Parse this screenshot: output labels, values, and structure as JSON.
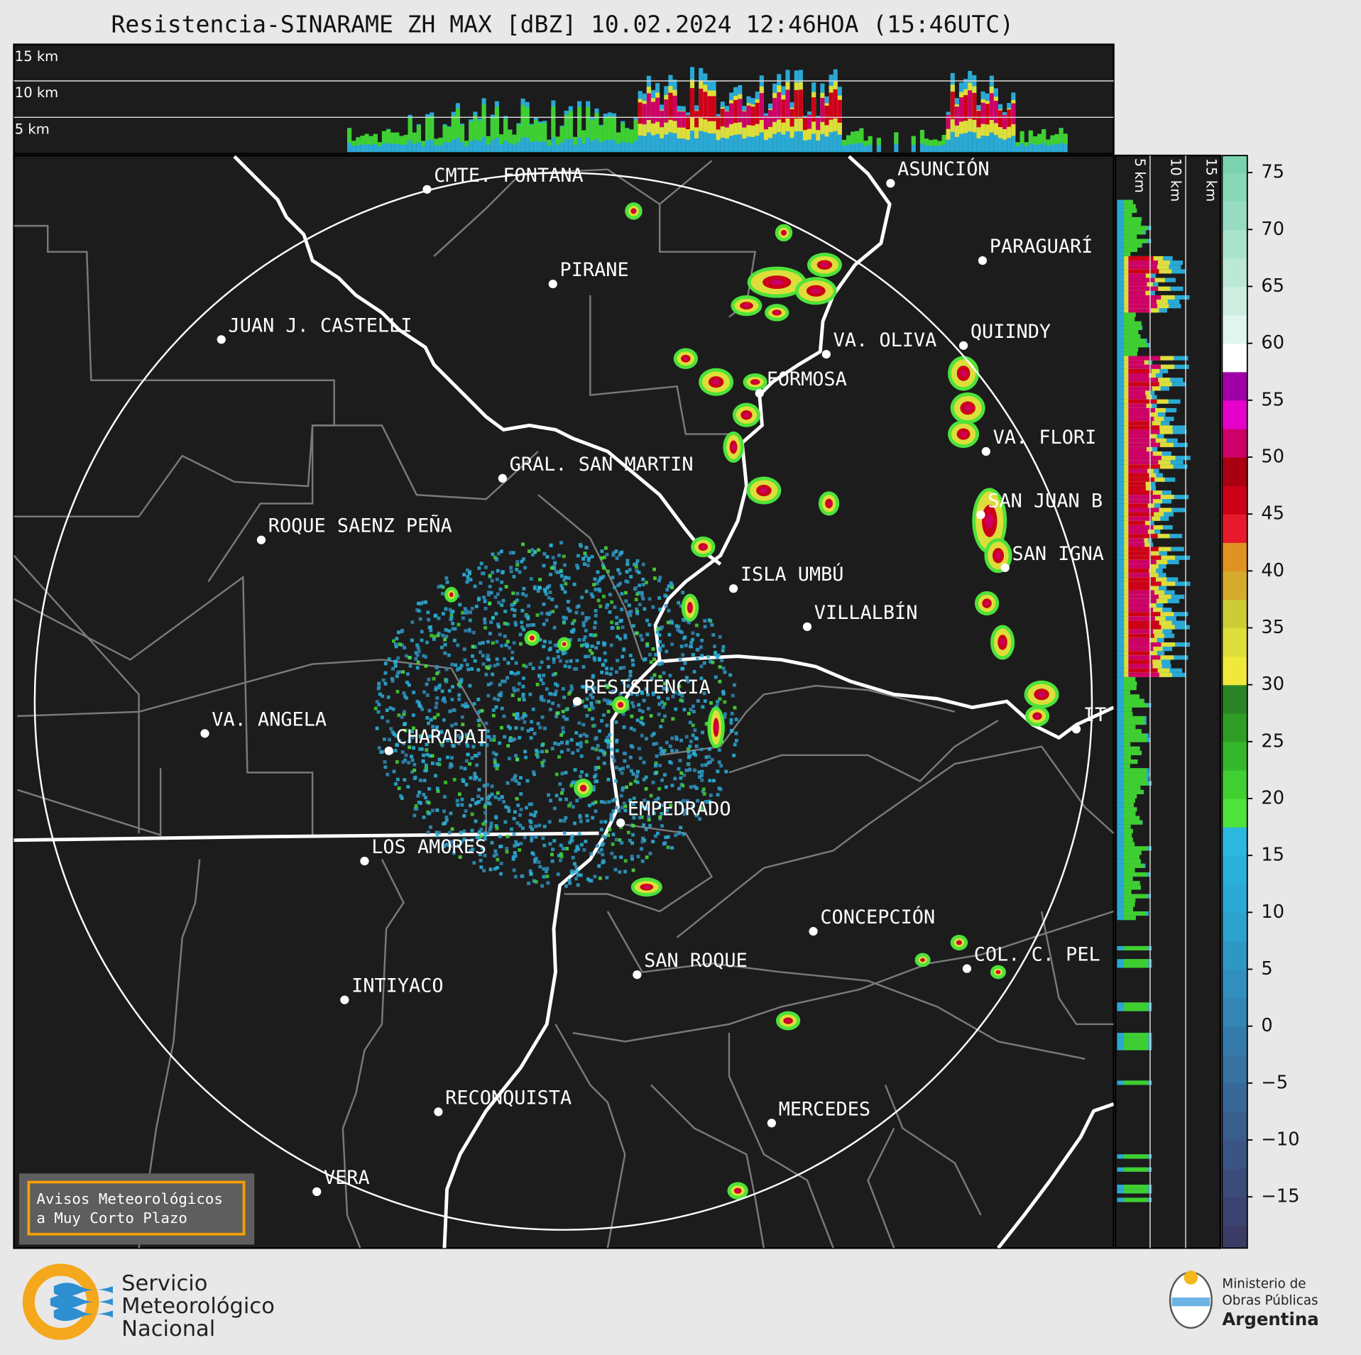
{
  "title": "Resistencia-SINARAME ZH MAX [dBZ] 10.02.2024 12:46HOA (15:46UTC)",
  "top_panel": {
    "height_labels": [
      "15 km",
      "10 km",
      "5 km"
    ]
  },
  "side_panel": {
    "height_labels": [
      "5 km",
      "10 km",
      "15 km"
    ]
  },
  "cities": [
    {
      "label": "CMTE. FONTANA"
    },
    {
      "label": "PIRANE"
    },
    {
      "label": "JUAN J. CASTELLI"
    },
    {
      "label": "ASUNCIÓN"
    },
    {
      "label": "PARAGUARÍ"
    },
    {
      "label": "VA. OLIVA"
    },
    {
      "label": "QUIINDY"
    },
    {
      "label": "FORMOSA"
    },
    {
      "label": "VA. FLORI"
    },
    {
      "label": "GRAL. SAN MARTIN"
    },
    {
      "label": "SAN JUAN B"
    },
    {
      "label": "ROQUE SAENZ PEÑA"
    },
    {
      "label": "SAN IGNA"
    },
    {
      "label": "ISLA UMBÚ"
    },
    {
      "label": "VILLALBÍN"
    },
    {
      "label": "RESISTENCIA"
    },
    {
      "label": "VA. ANGELA"
    },
    {
      "label": "CHARADAI"
    },
    {
      "label": "IT"
    },
    {
      "label": "EMPEDRADO"
    },
    {
      "label": "LOS AMORES"
    },
    {
      "label": "CONCEPCIÓN"
    },
    {
      "label": "COL. C. PEL"
    },
    {
      "label": "SAN ROQUE"
    },
    {
      "label": "INTIYACO"
    },
    {
      "label": "RECONQUISTA"
    },
    {
      "label": "MERCEDES"
    },
    {
      "label": "VERA"
    }
  ],
  "colorbar": {
    "lim": [
      -19.5,
      76.5
    ],
    "ticks": [
      75,
      70,
      65,
      60,
      55,
      50,
      45,
      40,
      35,
      30,
      25,
      20,
      15,
      10,
      5,
      0,
      {
        "value": -5,
        "label": "−5"
      },
      {
        "value": -10,
        "label": "−10"
      },
      {
        "value": -15,
        "label": "−15"
      }
    ],
    "band_start": -20,
    "band_step": 2.5,
    "colors": [
      "#3b3c66",
      "#3b4470",
      "#3b4c7a",
      "#3a5584",
      "#395e8e",
      "#386898",
      "#3672a2",
      "#347bab",
      "#3285b4",
      "#308fbd",
      "#2e98c5",
      "#2ca1cd",
      "#2aa9d4",
      "#29b1da",
      "#2ab8df",
      "#4ee33a",
      "#3fcf30",
      "#34b82a",
      "#2f9e27",
      "#2b8526",
      "#f0e83a",
      "#dede3a",
      "#cccc35",
      "#d6aa2c",
      "#e09222",
      "#e8192c",
      "#cc0018",
      "#a80010",
      "#cc0066",
      "#e600cc",
      "#a000a8",
      "#ffffff",
      "#e0f5ec",
      "#cdeee0",
      "#bce8d6",
      "#a9e3cc",
      "#97dcc2",
      "#88d8b8",
      "#7ad3af"
    ]
  },
  "notice": {
    "lines": [
      "Avisos Meteorológicos",
      "a Muy Corto Plazo"
    ]
  },
  "footer": {
    "smn": [
      "Servicio",
      "Meteorológico",
      "Nacional"
    ],
    "ministry": [
      "Ministerio de",
      "Obras Públicas",
      "Argentina"
    ]
  }
}
